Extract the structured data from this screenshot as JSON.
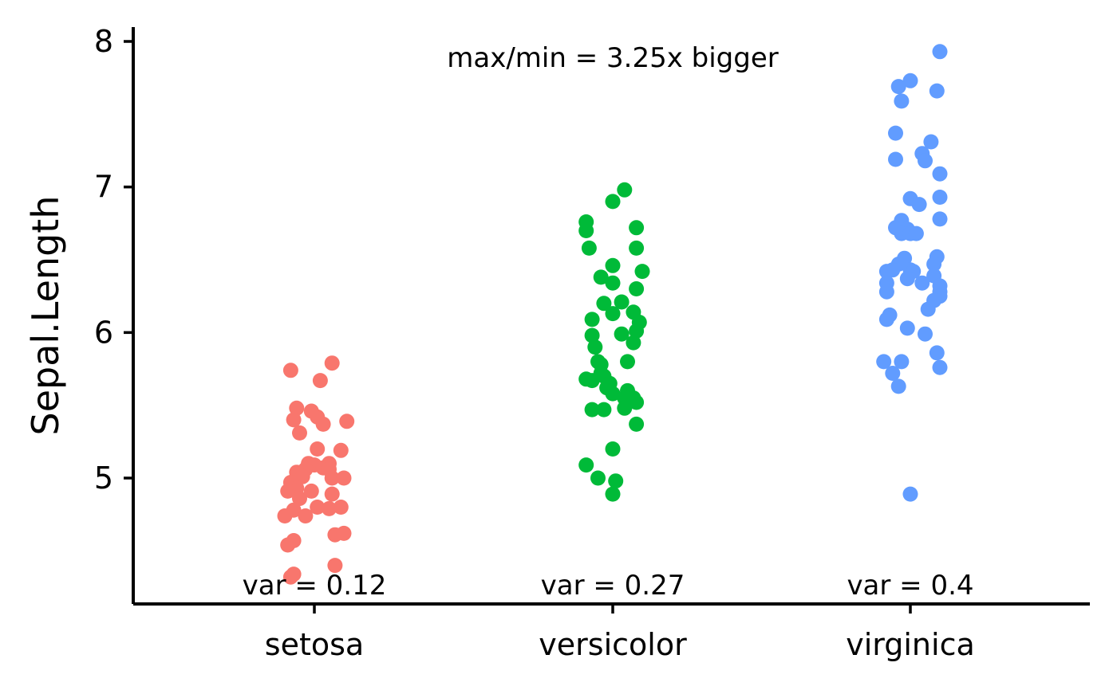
{
  "chart_data": {
    "type": "scatter",
    "ylabel": "Sepal.Length",
    "ylim": [
      4.14,
      8.1
    ],
    "yticks": [
      "5",
      "6",
      "7",
      "8"
    ],
    "categories": [
      "setosa",
      "versicolor",
      "virginica"
    ],
    "annotation": "max/min = 3.25x bigger",
    "grid": false,
    "legend": "none",
    "series": [
      {
        "category": "setosa",
        "color": "#F8766D",
        "variance_label": "var = 0.12",
        "points": [
          [
            0.06,
            5.79
          ],
          [
            -0.08,
            5.74
          ],
          [
            0.02,
            5.67
          ],
          [
            -0.06,
            5.48
          ],
          [
            -0.01,
            5.46
          ],
          [
            0.01,
            5.42
          ],
          [
            -0.07,
            5.4
          ],
          [
            0.11,
            5.39
          ],
          [
            0.03,
            5.37
          ],
          [
            -0.05,
            5.31
          ],
          [
            0.01,
            5.2
          ],
          [
            0.09,
            5.19
          ],
          [
            0.05,
            5.1
          ],
          [
            -0.02,
            5.1
          ],
          [
            0.0,
            5.09
          ],
          [
            -0.03,
            5.06
          ],
          [
            0.03,
            5.07
          ],
          [
            -0.06,
            5.04
          ],
          [
            0.05,
            5.06
          ],
          [
            -0.04,
            5.01
          ],
          [
            0.06,
            5.0
          ],
          [
            0.1,
            5.0
          ],
          [
            -0.08,
            4.97
          ],
          [
            -0.06,
            4.93
          ],
          [
            -0.09,
            4.91
          ],
          [
            -0.01,
            4.91
          ],
          [
            0.06,
            4.89
          ],
          [
            -0.05,
            4.86
          ],
          [
            -0.07,
            4.78
          ],
          [
            0.09,
            4.8
          ],
          [
            0.01,
            4.8
          ],
          [
            0.05,
            4.79
          ],
          [
            -0.03,
            4.74
          ],
          [
            -0.1,
            4.74
          ],
          [
            0.07,
            4.61
          ],
          [
            0.1,
            4.62
          ],
          [
            -0.07,
            4.57
          ],
          [
            -0.09,
            4.54
          ],
          [
            0.07,
            4.4
          ],
          [
            -0.07,
            4.34
          ],
          [
            -0.08,
            4.32
          ]
        ]
      },
      {
        "category": "versicolor",
        "color": "#00BA38",
        "variance_label": "var = 0.27",
        "points": [
          [
            0.04,
            6.98
          ],
          [
            0.0,
            6.9
          ],
          [
            -0.09,
            6.76
          ],
          [
            -0.09,
            6.7
          ],
          [
            0.08,
            6.72
          ],
          [
            -0.08,
            6.58
          ],
          [
            0.08,
            6.58
          ],
          [
            0.0,
            6.46
          ],
          [
            0.1,
            6.42
          ],
          [
            -0.04,
            6.38
          ],
          [
            0.0,
            6.34
          ],
          [
            0.08,
            6.3
          ],
          [
            -0.03,
            6.2
          ],
          [
            0.03,
            6.21
          ],
          [
            0.07,
            6.14
          ],
          [
            0.0,
            6.13
          ],
          [
            -0.07,
            6.09
          ],
          [
            0.09,
            6.07
          ],
          [
            0.08,
            6.01
          ],
          [
            -0.07,
            5.98
          ],
          [
            0.03,
            5.99
          ],
          [
            0.07,
            5.93
          ],
          [
            -0.06,
            5.9
          ],
          [
            -0.05,
            5.8
          ],
          [
            -0.04,
            5.78
          ],
          [
            0.05,
            5.8
          ],
          [
            -0.04,
            5.72
          ],
          [
            -0.03,
            5.7
          ],
          [
            -0.07,
            5.67
          ],
          [
            -0.09,
            5.68
          ],
          [
            -0.01,
            5.65
          ],
          [
            -0.02,
            5.62
          ],
          [
            0.05,
            5.6
          ],
          [
            0.07,
            5.55
          ],
          [
            0.0,
            5.58
          ],
          [
            0.04,
            5.55
          ],
          [
            0.08,
            5.52
          ],
          [
            -0.07,
            5.47
          ],
          [
            -0.03,
            5.47
          ],
          [
            0.04,
            5.48
          ],
          [
            0.08,
            5.37
          ],
          [
            0.0,
            5.2
          ],
          [
            -0.09,
            5.09
          ],
          [
            -0.05,
            5.0
          ],
          [
            0.01,
            4.98
          ],
          [
            0.0,
            4.89
          ]
        ]
      },
      {
        "category": "virginica",
        "color": "#619CFF",
        "variance_label": "var = 0.4",
        "points": [
          [
            0.1,
            7.93
          ],
          [
            0.0,
            7.73
          ],
          [
            -0.04,
            7.69
          ],
          [
            0.09,
            7.66
          ],
          [
            -0.03,
            7.59
          ],
          [
            -0.05,
            7.37
          ],
          [
            0.07,
            7.31
          ],
          [
            0.04,
            7.23
          ],
          [
            0.05,
            7.18
          ],
          [
            -0.05,
            7.19
          ],
          [
            0.1,
            7.09
          ],
          [
            0.1,
            6.93
          ],
          [
            0.0,
            6.92
          ],
          [
            0.03,
            6.88
          ],
          [
            0.1,
            6.78
          ],
          [
            -0.03,
            6.77
          ],
          [
            -0.05,
            6.72
          ],
          [
            -0.01,
            6.71
          ],
          [
            -0.03,
            6.68
          ],
          [
            0.0,
            6.68
          ],
          [
            0.02,
            6.68
          ],
          [
            0.09,
            6.52
          ],
          [
            -0.02,
            6.51
          ],
          [
            -0.04,
            6.47
          ],
          [
            0.08,
            6.47
          ],
          [
            -0.06,
            6.43
          ],
          [
            -0.08,
            6.42
          ],
          [
            0.0,
            6.43
          ],
          [
            0.01,
            6.42
          ],
          [
            0.08,
            6.39
          ],
          [
            -0.01,
            6.37
          ],
          [
            -0.08,
            6.34
          ],
          [
            0.04,
            6.34
          ],
          [
            0.1,
            6.32
          ],
          [
            0.1,
            6.28
          ],
          [
            -0.08,
            6.28
          ],
          [
            0.1,
            6.25
          ],
          [
            0.08,
            6.22
          ],
          [
            0.06,
            6.16
          ],
          [
            -0.07,
            6.12
          ],
          [
            -0.08,
            6.09
          ],
          [
            -0.01,
            6.03
          ],
          [
            0.05,
            5.99
          ],
          [
            0.09,
            5.86
          ],
          [
            -0.09,
            5.8
          ],
          [
            -0.03,
            5.8
          ],
          [
            0.1,
            5.76
          ],
          [
            -0.06,
            5.72
          ],
          [
            -0.04,
            5.63
          ],
          [
            0.0,
            4.89
          ]
        ]
      }
    ]
  }
}
